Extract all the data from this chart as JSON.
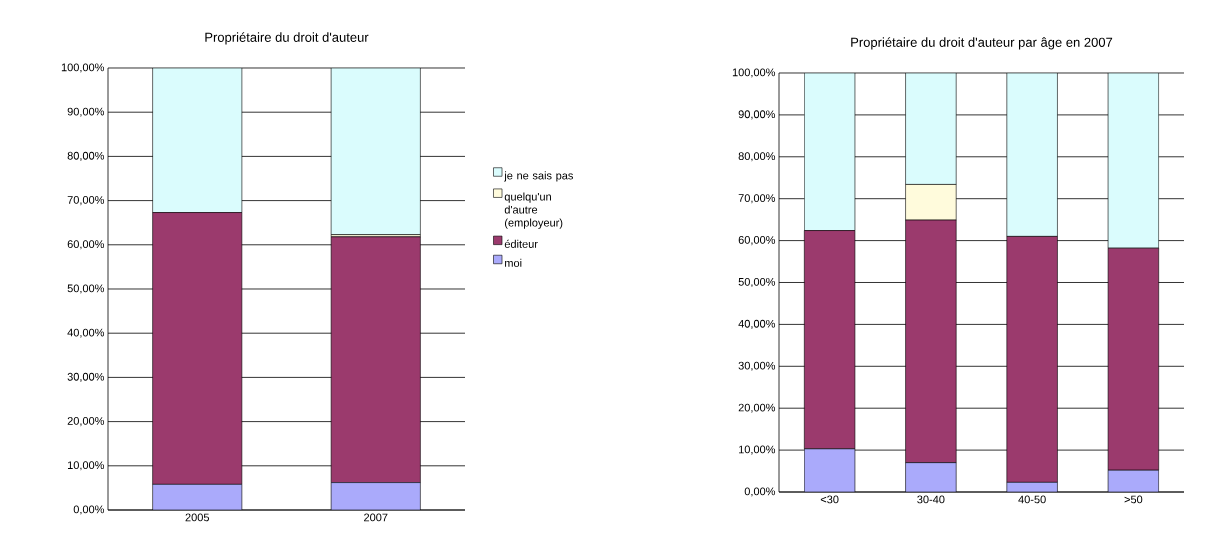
{
  "chart_data": [
    {
      "type": "bar",
      "title": "Propriétaire du droit d'auteur",
      "stacked": true,
      "categories": [
        "2005",
        "2007"
      ],
      "series": [
        {
          "name": "moi",
          "color": "#aaaafb",
          "values": [
            5.8,
            6.2
          ]
        },
        {
          "name": "éditeur",
          "color": "#9b3a6d",
          "values": [
            61.5,
            55.6
          ]
        },
        {
          "name": "quelqu'un d'autre (employeur)",
          "color": "#fffbdc",
          "values": [
            0,
            0.5
          ]
        },
        {
          "name": "je ne sais pas",
          "color": "#dafcfd",
          "values": [
            32.7,
            37.7
          ]
        }
      ],
      "ylim": [
        0,
        100
      ],
      "yticks": [
        {
          "value": 0,
          "label": "0,00%"
        },
        {
          "value": 10,
          "label": "10,00%"
        },
        {
          "value": 20,
          "label": "20,00%"
        },
        {
          "value": 30,
          "label": "30,00%"
        },
        {
          "value": 40,
          "label": "40,00%"
        },
        {
          "value": 50,
          "label": "50,00%"
        },
        {
          "value": 60,
          "label": "60,00%"
        },
        {
          "value": 70,
          "label": "70,00%"
        },
        {
          "value": 80,
          "label": "80,00%"
        },
        {
          "value": 90,
          "label": "90,00%"
        },
        {
          "value": 100,
          "label": "100,00%"
        }
      ],
      "grid": "y",
      "legend": "right"
    },
    {
      "type": "bar",
      "title": "Propriétaire du droit d'auteur par âge en 2007",
      "stacked": true,
      "categories": [
        "<30",
        "30-40",
        "40-50",
        ">50"
      ],
      "series": [
        {
          "color": "#aaaafb",
          "values": [
            10.3,
            7.0,
            2.3,
            5.2
          ]
        },
        {
          "color": "#9b3a6d",
          "values": [
            52.1,
            57.9,
            58.7,
            53.0
          ]
        },
        {
          "color": "#fffbdc",
          "values": [
            0,
            8.5,
            0,
            0
          ]
        },
        {
          "color": "#dafcfd",
          "values": [
            37.6,
            26.6,
            39.0,
            41.8
          ]
        }
      ],
      "ylim": [
        0,
        100
      ],
      "yticks": [
        {
          "value": 0,
          "label": "0,00%"
        },
        {
          "value": 10,
          "label": "10,00%"
        },
        {
          "value": 20,
          "label": "20,00%"
        },
        {
          "value": 30,
          "label": "30,00%"
        },
        {
          "value": 40,
          "label": "40,00%"
        },
        {
          "value": 50,
          "label": "50,00%"
        },
        {
          "value": 60,
          "label": "60,00%"
        },
        {
          "value": 70,
          "label": "70,00%"
        },
        {
          "value": 80,
          "label": "80,00%"
        },
        {
          "value": 90,
          "label": "90,00%"
        },
        {
          "value": 100,
          "label": "100,00%"
        }
      ],
      "grid": "y"
    }
  ]
}
